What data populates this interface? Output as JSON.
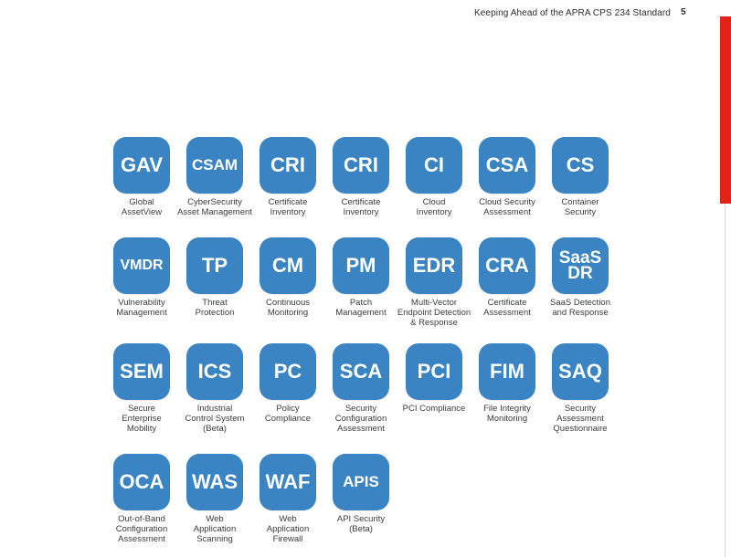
{
  "header": {
    "title": "Keeping Ahead of the APRA CPS 234 Standard",
    "page_number": "5"
  },
  "colors": {
    "badge": "#3b84c4",
    "accent_bar": "#e2231a"
  },
  "apps": [
    {
      "abbr": "GAV",
      "caption": "Global\nAssetView"
    },
    {
      "abbr": "CSAM",
      "caption": "CyberSecurity\nAsset Management"
    },
    {
      "abbr": "CRI",
      "caption": "Certificate\nInventory"
    },
    {
      "abbr": "CRI",
      "caption": "Certificate\nInventory"
    },
    {
      "abbr": "CI",
      "caption": "Cloud\nInventory"
    },
    {
      "abbr": "CSA",
      "caption": "Cloud Security\nAssessment"
    },
    {
      "abbr": "CS",
      "caption": "Container\nSecurity"
    },
    {
      "abbr": "VMDR",
      "caption": "Vulnerability\nManagement"
    },
    {
      "abbr": "TP",
      "caption": "Threat\nProtection"
    },
    {
      "abbr": "CM",
      "caption": "Continuous\nMonitoring"
    },
    {
      "abbr": "PM",
      "caption": "Patch\nManagement"
    },
    {
      "abbr": "EDR",
      "caption": "Multi-Vector\nEndpoint Detection\n& Response"
    },
    {
      "abbr": "CRA",
      "caption": "Certificate\nAssessment"
    },
    {
      "abbr": "SaaS\nDR",
      "caption": "SaaS Detection\nand Response"
    },
    {
      "abbr": "SEM",
      "caption": "Secure\nEnterprise\nMobility"
    },
    {
      "abbr": "ICS",
      "caption": "Industrial\nControl System\n(Beta)"
    },
    {
      "abbr": "PC",
      "caption": "Policy\nCompliance"
    },
    {
      "abbr": "SCA",
      "caption": "Security\nConfiguration\nAssessment"
    },
    {
      "abbr": "PCI",
      "caption": "PCI Compliance"
    },
    {
      "abbr": "FIM",
      "caption": "File Integrity\nMonitoring"
    },
    {
      "abbr": "SAQ",
      "caption": "Security\nAssessment\nQuestionnaire"
    },
    {
      "abbr": "OCA",
      "caption": "Out-of-Band\nConfiguration\nAssessment"
    },
    {
      "abbr": "WAS",
      "caption": "Web\nApplication\nScanning"
    },
    {
      "abbr": "WAF",
      "caption": "Web\nApplication\nFirewall"
    },
    {
      "abbr": "APIS",
      "caption": "API Security\n(Beta)"
    }
  ]
}
